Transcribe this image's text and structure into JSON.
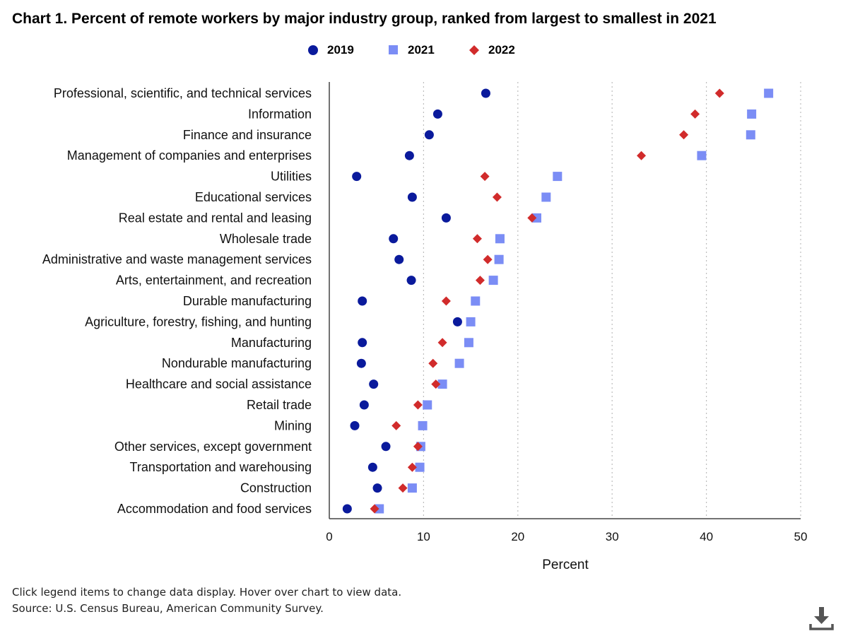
{
  "title": "Chart 1. Percent of remote workers by major industry group, ranked from largest to smallest in 2021",
  "legend": [
    {
      "label": "2019",
      "shape": "circle",
      "color": "#0a1a9c"
    },
    {
      "label": "2021",
      "shape": "square",
      "color": "#7b8df5"
    },
    {
      "label": "2022",
      "shape": "diamond",
      "color": "#d12b2b"
    }
  ],
  "notes": {
    "instructions": "Click legend items to change data display. Hover over chart to view data.",
    "source": "Source: U.S. Census Bureau, American Community Survey."
  },
  "download_icon": "download-icon",
  "chart_data": {
    "type": "scatter",
    "orientation": "horizontal-dot-plot",
    "title": "Chart 1. Percent of remote workers by major industry group, ranked from largest to smallest in 2021",
    "xlabel": "Percent",
    "xlim": [
      0,
      50
    ],
    "xticks": [
      0,
      10,
      20,
      30,
      40,
      50
    ],
    "grid": "vertical dotted",
    "legend_position": "top-center",
    "categories": [
      "Professional, scientific, and technical services",
      "Information",
      "Finance and insurance",
      "Management of companies and enterprises",
      "Utilities",
      "Educational services",
      "Real estate and rental and leasing",
      "Wholesale trade",
      "Administrative and waste management services",
      "Arts, entertainment, and recreation",
      "Durable manufacturing",
      "Agriculture, forestry, fishing, and hunting",
      "Manufacturing",
      "Nondurable manufacturing",
      "Healthcare and social assistance",
      "Retail trade",
      "Mining",
      "Other services, except government",
      "Transportation and warehousing",
      "Construction",
      "Accommodation and food services"
    ],
    "series": [
      {
        "name": "2019",
        "shape": "circle",
        "color": "#0a1a9c",
        "values": [
          16.6,
          11.5,
          10.6,
          8.5,
          2.9,
          8.8,
          12.4,
          6.8,
          7.4,
          8.7,
          3.5,
          13.6,
          3.5,
          3.4,
          4.7,
          3.7,
          2.7,
          6.0,
          4.6,
          5.1,
          1.9
        ]
      },
      {
        "name": "2021",
        "shape": "square",
        "color": "#7b8df5",
        "values": [
          46.6,
          44.8,
          44.7,
          39.5,
          24.2,
          23.0,
          22.0,
          18.1,
          18.0,
          17.4,
          15.5,
          15.0,
          14.8,
          13.8,
          12.0,
          10.4,
          9.9,
          9.7,
          9.6,
          8.8,
          5.3
        ]
      },
      {
        "name": "2022",
        "shape": "diamond",
        "color": "#d12b2b",
        "values": [
          41.4,
          38.8,
          37.6,
          33.1,
          16.5,
          17.8,
          21.5,
          15.7,
          16.8,
          16.0,
          12.4,
          13.6,
          12.0,
          11.0,
          11.3,
          9.4,
          7.1,
          9.4,
          8.8,
          7.8,
          4.8
        ]
      }
    ]
  }
}
